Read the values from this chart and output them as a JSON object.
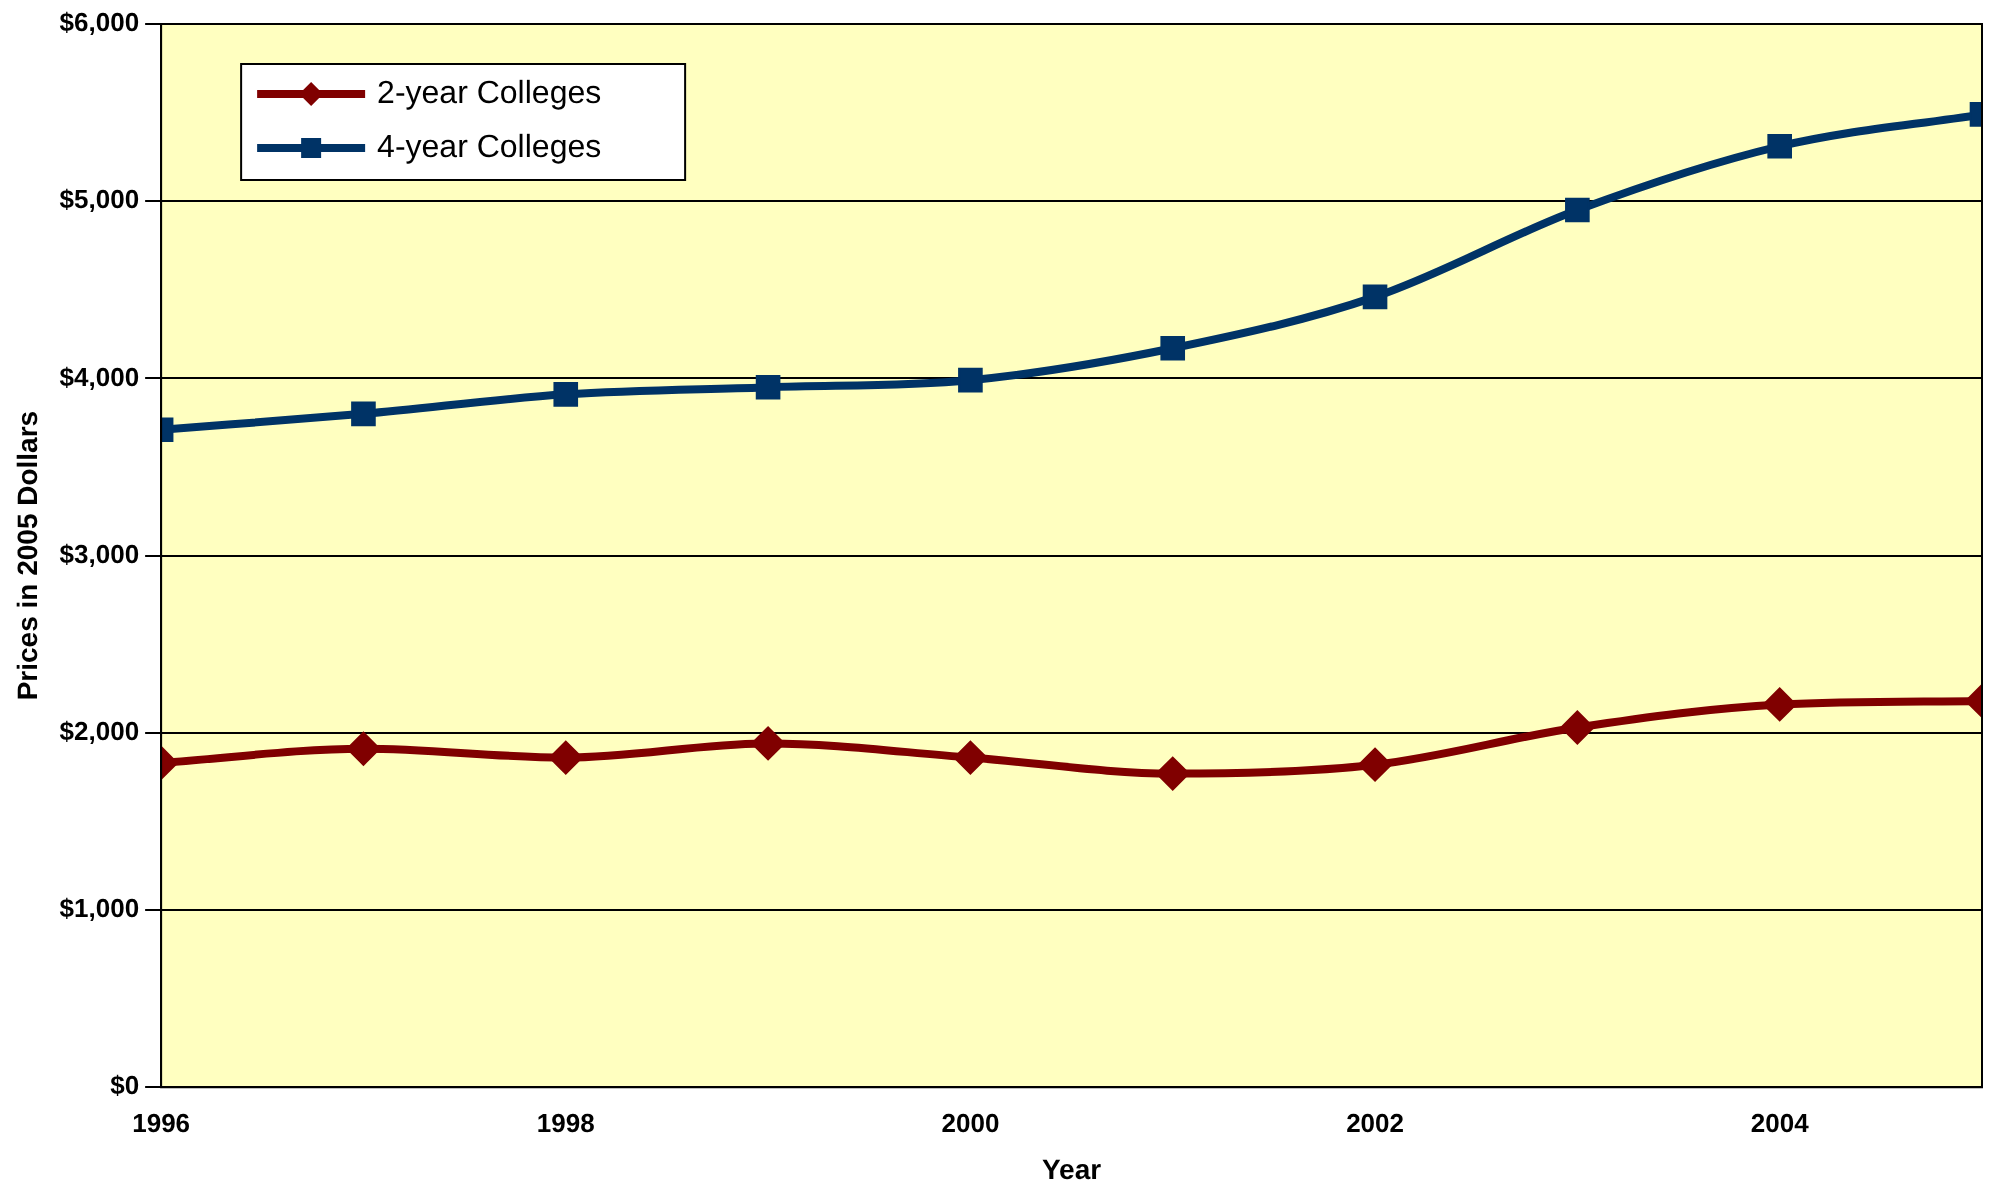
{
  "chart_data": {
    "type": "line",
    "xlabel": "Year",
    "ylabel": "Prices in 2005 Dollars",
    "x": [
      1996,
      1997,
      1998,
      1999,
      2000,
      2001,
      2002,
      2003,
      2004,
      2005
    ],
    "series": [
      {
        "name": "2-year Colleges",
        "color": "#800000",
        "marker": "diamond",
        "values": [
          1830,
          1910,
          1860,
          1940,
          1860,
          1770,
          1820,
          2030,
          2160,
          2180
        ]
      },
      {
        "name": "4-year Colleges",
        "color": "#003366",
        "marker": "square",
        "values": [
          3710,
          3800,
          3910,
          3950,
          3990,
          4170,
          4460,
          4950,
          5310,
          5490
        ]
      }
    ],
    "xlim": [
      1996,
      2005
    ],
    "xticks": [
      1996,
      1998,
      2000,
      2002,
      2004
    ],
    "ylim": [
      0,
      6000
    ],
    "yticks": [
      {
        "value": 0,
        "label": "$0"
      },
      {
        "value": 1000,
        "label": "$1,000"
      },
      {
        "value": 2000,
        "label": "$2,000"
      },
      {
        "value": 3000,
        "label": "$3,000"
      },
      {
        "value": 4000,
        "label": "$4,000"
      },
      {
        "value": 5000,
        "label": "$5,000"
      },
      {
        "value": 6000,
        "label": "$6,000"
      }
    ],
    "grid": "y",
    "legend": "top left"
  }
}
